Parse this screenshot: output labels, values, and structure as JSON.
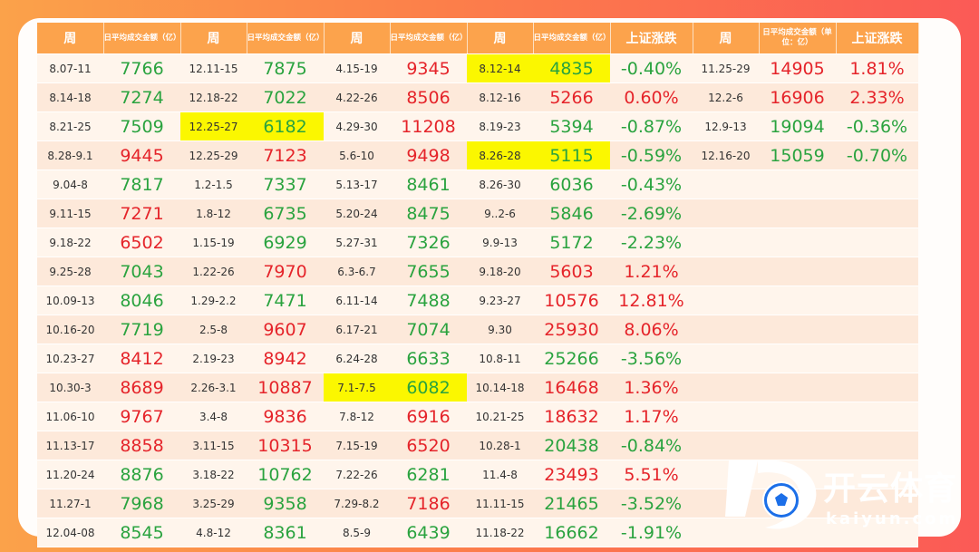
{
  "headers": [
    "周",
    "日平均成交金额（亿）",
    "周",
    "日平均成交金额（亿）",
    "周",
    "日平均成交金额（亿）",
    "周",
    "日平均成交金额（亿）",
    "上证涨跌",
    "周",
    "日平均成交金额（单位：亿）",
    "上证涨跌"
  ],
  "rows": [
    [
      {
        "t": "8.07-11"
      },
      {
        "t": "7766",
        "c": "green"
      },
      {
        "t": "12.11-15"
      },
      {
        "t": "7875",
        "c": "green"
      },
      {
        "t": "4.15-19"
      },
      {
        "t": "9345",
        "c": "red"
      },
      {
        "t": "8.12-14",
        "h": true
      },
      {
        "t": "4835",
        "c": "green",
        "h": true
      },
      {
        "t": "-0.40%",
        "c": "green"
      },
      {
        "t": "11.25-29"
      },
      {
        "t": "14905",
        "c": "red"
      },
      {
        "t": "1.81%",
        "c": "red"
      }
    ],
    [
      {
        "t": "8.14-18"
      },
      {
        "t": "7274",
        "c": "green"
      },
      {
        "t": "12.18-22"
      },
      {
        "t": "7022",
        "c": "green"
      },
      {
        "t": "4.22-26"
      },
      {
        "t": "8506",
        "c": "red"
      },
      {
        "t": "8.12-16"
      },
      {
        "t": "5266",
        "c": "red"
      },
      {
        "t": "0.60%",
        "c": "red"
      },
      {
        "t": "12.2-6"
      },
      {
        "t": "16906",
        "c": "red"
      },
      {
        "t": "2.33%",
        "c": "red"
      }
    ],
    [
      {
        "t": "8.21-25"
      },
      {
        "t": "7509",
        "c": "green"
      },
      {
        "t": "12.25-27",
        "h": true
      },
      {
        "t": "6182",
        "c": "green",
        "h": true
      },
      {
        "t": "4.29-30"
      },
      {
        "t": "11208",
        "c": "red"
      },
      {
        "t": "8.19-23"
      },
      {
        "t": "5394",
        "c": "green"
      },
      {
        "t": "-0.87%",
        "c": "green"
      },
      {
        "t": "12.9-13"
      },
      {
        "t": "19094",
        "c": "green"
      },
      {
        "t": "-0.36%",
        "c": "green"
      }
    ],
    [
      {
        "t": "8.28-9.1"
      },
      {
        "t": "9445",
        "c": "red"
      },
      {
        "t": "12.25-29"
      },
      {
        "t": "7123",
        "c": "red"
      },
      {
        "t": "5.6-10"
      },
      {
        "t": "9498",
        "c": "red"
      },
      {
        "t": "8.26-28",
        "h": true
      },
      {
        "t": "5115",
        "c": "green",
        "h": true
      },
      {
        "t": "-0.59%",
        "c": "green"
      },
      {
        "t": "12.16-20"
      },
      {
        "t": "15059",
        "c": "green"
      },
      {
        "t": "-0.70%",
        "c": "green"
      }
    ],
    [
      {
        "t": "9.04-8"
      },
      {
        "t": "7817",
        "c": "green"
      },
      {
        "t": "1.2-1.5"
      },
      {
        "t": "7337",
        "c": "green"
      },
      {
        "t": "5.13-17"
      },
      {
        "t": "8461",
        "c": "green"
      },
      {
        "t": "8.26-30"
      },
      {
        "t": "6036",
        "c": "green"
      },
      {
        "t": "-0.43%",
        "c": "green"
      },
      {
        "t": ""
      },
      {
        "t": ""
      },
      {
        "t": ""
      }
    ],
    [
      {
        "t": "9.11-15"
      },
      {
        "t": "7271",
        "c": "red"
      },
      {
        "t": "1.8-12"
      },
      {
        "t": "6735",
        "c": "green"
      },
      {
        "t": "5.20-24"
      },
      {
        "t": "8475",
        "c": "green"
      },
      {
        "t": "9..2-6"
      },
      {
        "t": "5846",
        "c": "green"
      },
      {
        "t": "-2.69%",
        "c": "green"
      },
      {
        "t": ""
      },
      {
        "t": ""
      },
      {
        "t": ""
      }
    ],
    [
      {
        "t": "9.18-22"
      },
      {
        "t": "6502",
        "c": "red"
      },
      {
        "t": "1.15-19"
      },
      {
        "t": "6929",
        "c": "green"
      },
      {
        "t": "5.27-31"
      },
      {
        "t": "7326",
        "c": "green"
      },
      {
        "t": "9.9-13"
      },
      {
        "t": "5172",
        "c": "green"
      },
      {
        "t": "-2.23%",
        "c": "green"
      },
      {
        "t": ""
      },
      {
        "t": ""
      },
      {
        "t": ""
      }
    ],
    [
      {
        "t": "9.25-28"
      },
      {
        "t": "7043",
        "c": "green"
      },
      {
        "t": "1.22-26"
      },
      {
        "t": "7970",
        "c": "red"
      },
      {
        "t": "6.3-6.7"
      },
      {
        "t": "7655",
        "c": "green"
      },
      {
        "t": "9.18-20"
      },
      {
        "t": "5603",
        "c": "red"
      },
      {
        "t": "1.21%",
        "c": "red"
      },
      {
        "t": ""
      },
      {
        "t": ""
      },
      {
        "t": ""
      }
    ],
    [
      {
        "t": "10.09-13"
      },
      {
        "t": "8046",
        "c": "green"
      },
      {
        "t": "1.29-2.2"
      },
      {
        "t": "7471",
        "c": "green"
      },
      {
        "t": "6.11-14"
      },
      {
        "t": "7488",
        "c": "green"
      },
      {
        "t": "9.23-27"
      },
      {
        "t": "10576",
        "c": "red"
      },
      {
        "t": "12.81%",
        "c": "red"
      },
      {
        "t": ""
      },
      {
        "t": ""
      },
      {
        "t": ""
      }
    ],
    [
      {
        "t": "10.16-20"
      },
      {
        "t": "7719",
        "c": "green"
      },
      {
        "t": "2.5-8"
      },
      {
        "t": "9607",
        "c": "red"
      },
      {
        "t": "6.17-21"
      },
      {
        "t": "7074",
        "c": "green"
      },
      {
        "t": "9.30"
      },
      {
        "t": "25930",
        "c": "red"
      },
      {
        "t": "8.06%",
        "c": "red"
      },
      {
        "t": ""
      },
      {
        "t": ""
      },
      {
        "t": ""
      }
    ],
    [
      {
        "t": "10.23-27"
      },
      {
        "t": "8412",
        "c": "red"
      },
      {
        "t": "2.19-23"
      },
      {
        "t": "8942",
        "c": "red"
      },
      {
        "t": "6.24-28"
      },
      {
        "t": "6633",
        "c": "green"
      },
      {
        "t": "10.8-11"
      },
      {
        "t": "25266",
        "c": "green"
      },
      {
        "t": "-3.56%",
        "c": "green"
      },
      {
        "t": ""
      },
      {
        "t": ""
      },
      {
        "t": ""
      }
    ],
    [
      {
        "t": "10.30-3"
      },
      {
        "t": "8689",
        "c": "red"
      },
      {
        "t": "2.26-3.1"
      },
      {
        "t": "10887",
        "c": "red"
      },
      {
        "t": "7.1-7.5",
        "h": true
      },
      {
        "t": "6082",
        "c": "green",
        "h": true
      },
      {
        "t": "10.14-18"
      },
      {
        "t": "16468",
        "c": "red"
      },
      {
        "t": "1.36%",
        "c": "red"
      },
      {
        "t": ""
      },
      {
        "t": ""
      },
      {
        "t": ""
      }
    ],
    [
      {
        "t": "11.06-10"
      },
      {
        "t": "9767",
        "c": "red"
      },
      {
        "t": "3.4-8"
      },
      {
        "t": "9836",
        "c": "red"
      },
      {
        "t": "7.8-12"
      },
      {
        "t": "6916",
        "c": "red"
      },
      {
        "t": "10.21-25"
      },
      {
        "t": "18632",
        "c": "red"
      },
      {
        "t": "1.17%",
        "c": "red"
      },
      {
        "t": ""
      },
      {
        "t": ""
      },
      {
        "t": ""
      }
    ],
    [
      {
        "t": "11.13-17"
      },
      {
        "t": "8858",
        "c": "red"
      },
      {
        "t": "3.11-15"
      },
      {
        "t": "10315",
        "c": "red"
      },
      {
        "t": "7.15-19"
      },
      {
        "t": "6520",
        "c": "red"
      },
      {
        "t": "10.28-1"
      },
      {
        "t": "20438",
        "c": "green"
      },
      {
        "t": "-0.84%",
        "c": "green"
      },
      {
        "t": ""
      },
      {
        "t": ""
      },
      {
        "t": ""
      }
    ],
    [
      {
        "t": "11.20-24"
      },
      {
        "t": "8876",
        "c": "green"
      },
      {
        "t": "3.18-22"
      },
      {
        "t": "10762",
        "c": "green"
      },
      {
        "t": "7.22-26"
      },
      {
        "t": "6281",
        "c": "green"
      },
      {
        "t": "11.4-8"
      },
      {
        "t": "23493",
        "c": "red"
      },
      {
        "t": "5.51%",
        "c": "red"
      },
      {
        "t": ""
      },
      {
        "t": ""
      },
      {
        "t": ""
      }
    ],
    [
      {
        "t": "11.27-1"
      },
      {
        "t": "7968",
        "c": "green"
      },
      {
        "t": "3.25-29"
      },
      {
        "t": "9358",
        "c": "green"
      },
      {
        "t": "7.29-8.2"
      },
      {
        "t": "7186",
        "c": "red"
      },
      {
        "t": "11.11-15"
      },
      {
        "t": "21465",
        "c": "green"
      },
      {
        "t": "-3.52%",
        "c": "green"
      },
      {
        "t": ""
      },
      {
        "t": ""
      },
      {
        "t": ""
      }
    ],
    [
      {
        "t": "12.04-08"
      },
      {
        "t": "8545",
        "c": "green"
      },
      {
        "t": "4.8-12"
      },
      {
        "t": "8361",
        "c": "green"
      },
      {
        "t": "8.5-9"
      },
      {
        "t": "6439",
        "c": "green"
      },
      {
        "t": "11.18-22"
      },
      {
        "t": "16662",
        "c": "green"
      },
      {
        "t": "-1.91%",
        "c": "green"
      },
      {
        "t": ""
      },
      {
        "t": ""
      },
      {
        "t": ""
      }
    ]
  ],
  "colors": {
    "red": "#e5242a",
    "green": "#2aa33f",
    "highlight": "#fbf700",
    "header": "#fca34c"
  },
  "logo": {
    "cn": "开云体育",
    "en": "kaiyun.com",
    "icon": "k-soccer-ball-logo-icon"
  }
}
